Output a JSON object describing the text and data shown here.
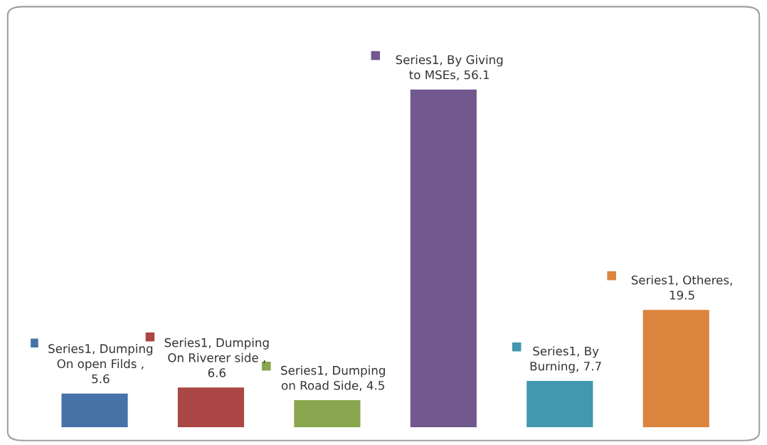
{
  "chart_data": {
    "type": "bar",
    "categories": [
      null,
      null,
      null,
      null,
      null,
      null
    ],
    "series": [
      {
        "values": [
          5.6,
          6.6,
          4.5,
          56.1,
          7.7,
          19.5
        ],
        "colors": [
          "#4572a7",
          "#aa4643",
          "#89a54e",
          "#71588f",
          "#4198af",
          "#db843d"
        ],
        "value_labels": [
          "Series1, Dumping\nOn open Filds ,\n5.6",
          "Series1, Dumping\nOn Riverer side ,\n6.6",
          "Series1, Dumping\non Road Side, 4.5",
          "Series1, By Giving\nto MSEs, 56.1",
          "Series1, By\nBurning, 7.7",
          "Series1, Otheres,\n19.5"
        ]
      }
    ],
    "tick_labels": false,
    "legend": false
  }
}
